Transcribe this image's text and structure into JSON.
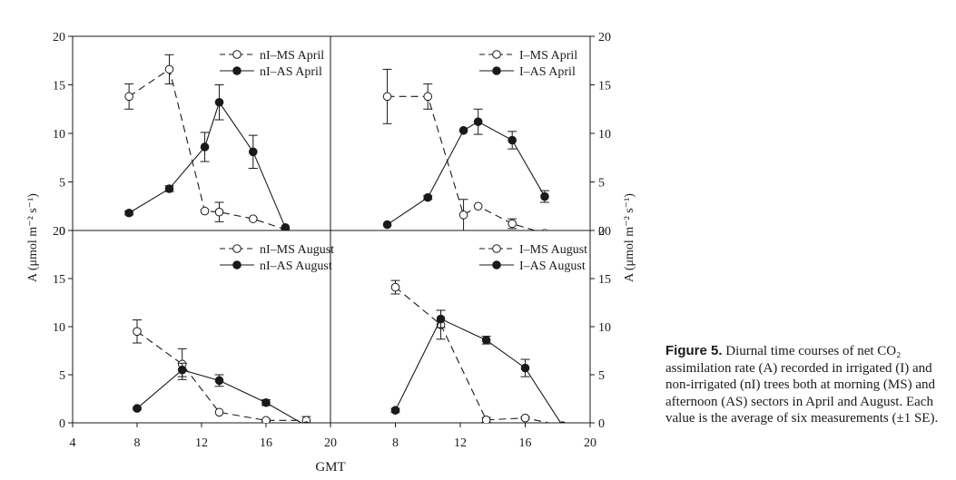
{
  "chart_data": [
    {
      "type": "line",
      "panel": "top-left",
      "ylim": [
        0,
        20
      ],
      "xlim": [
        4,
        20
      ],
      "yticks": [
        "0",
        "5",
        "10",
        "15",
        "20"
      ],
      "xticks": [],
      "legend": "top-right",
      "series": [
        {
          "name": "nI–MS April",
          "marker": "open",
          "dash": true,
          "x": [
            7.5,
            10,
            12.2,
            13.1,
            15.2,
            17.2
          ],
          "y": [
            13.8,
            16.6,
            2.0,
            1.9,
            1.2,
            0.1
          ],
          "err": [
            1.3,
            1.5,
            0,
            1.0,
            0,
            0
          ]
        },
        {
          "name": "nI–AS April",
          "marker": "filled",
          "dash": false,
          "x": [
            7.5,
            10,
            12.2,
            13.1,
            15.2,
            17.2
          ],
          "y": [
            1.8,
            4.3,
            8.6,
            13.2,
            8.1,
            0.3
          ],
          "err": [
            0.2,
            0.3,
            1.5,
            1.8,
            1.7,
            0
          ]
        }
      ]
    },
    {
      "type": "line",
      "panel": "top-right",
      "ylim": [
        0,
        20
      ],
      "xlim": [
        4,
        20
      ],
      "yticks": [
        "0",
        "5",
        "10",
        "15",
        "20"
      ],
      "xticks": [],
      "legend": "top-right",
      "series": [
        {
          "name": "I–MS April",
          "marker": "open",
          "dash": true,
          "x": [
            7.5,
            10,
            12.2,
            13.1,
            15.2,
            17.2
          ],
          "y": [
            13.8,
            13.8,
            1.6,
            2.5,
            0.7,
            -0.3
          ],
          "err": [
            2.8,
            1.3,
            1.6,
            0,
            0.5,
            0
          ]
        },
        {
          "name": "I–AS April",
          "marker": "filled",
          "dash": false,
          "x": [
            7.5,
            10,
            12.2,
            13.1,
            15.2,
            17.2
          ],
          "y": [
            0.6,
            3.4,
            10.3,
            11.2,
            9.3,
            3.5
          ],
          "err": [
            0,
            0.2,
            0,
            1.3,
            0.9,
            0.6
          ]
        }
      ]
    },
    {
      "type": "line",
      "panel": "bottom-left",
      "ylim": [
        0,
        20
      ],
      "xlim": [
        4,
        20
      ],
      "yticks": [
        "0",
        "5",
        "10",
        "15",
        "20"
      ],
      "xticks": [
        "4",
        "8",
        "12",
        "16",
        "20"
      ],
      "legend": "top-right",
      "series": [
        {
          "name": "nI–MS August",
          "marker": "open",
          "dash": true,
          "x": [
            8,
            10.8,
            13.1,
            16,
            18.5
          ],
          "y": [
            9.5,
            6.1,
            1.1,
            0.25,
            0.25
          ],
          "err": [
            1.2,
            1.6,
            0,
            0.1,
            0.4
          ]
        },
        {
          "name": "nI–AS August",
          "marker": "filled",
          "dash": false,
          "x": [
            8,
            10.8,
            13.1,
            16,
            18.5
          ],
          "y": [
            1.5,
            5.5,
            4.4,
            2.1,
            -0.3
          ],
          "err": [
            0.1,
            0.7,
            0.6,
            0.3,
            0
          ]
        }
      ]
    },
    {
      "type": "line",
      "panel": "bottom-right",
      "ylim": [
        0,
        20
      ],
      "xlim": [
        4,
        20
      ],
      "yticks": [
        "0",
        "5",
        "10",
        "15",
        "20"
      ],
      "xticks": [
        "8",
        "12",
        "16",
        "20"
      ],
      "legend": "top-right",
      "series": [
        {
          "name": "I–MS August",
          "marker": "open",
          "dash": true,
          "x": [
            8,
            10.8,
            13.6,
            16,
            18.3
          ],
          "y": [
            14.1,
            10.2,
            0.3,
            0.5,
            -0.3
          ],
          "err": [
            0.7,
            1.5,
            0.25,
            0.1,
            0
          ]
        },
        {
          "name": "I–AS August",
          "marker": "filled",
          "dash": false,
          "x": [
            8,
            10.8,
            13.6,
            16,
            18.3
          ],
          "y": [
            1.3,
            10.8,
            8.6,
            5.7,
            -0.3
          ],
          "err": [
            0.2,
            0.9,
            0.4,
            0.9,
            0
          ]
        }
      ]
    }
  ],
  "axes": {
    "ylabel": "A (μmol m⁻² s⁻¹)",
    "xlabel": "GMT"
  },
  "caption": {
    "figure_label": "Figure 5.",
    "text": " Diurnal time courses of net CO₂ assimilation rate (A) recorded in irrigated (I) and non-irrigated (nI) trees both at morning (MS) and afternoon (AS) sectors in April and August. Each value is the average of six measurements (±1 SE)."
  }
}
